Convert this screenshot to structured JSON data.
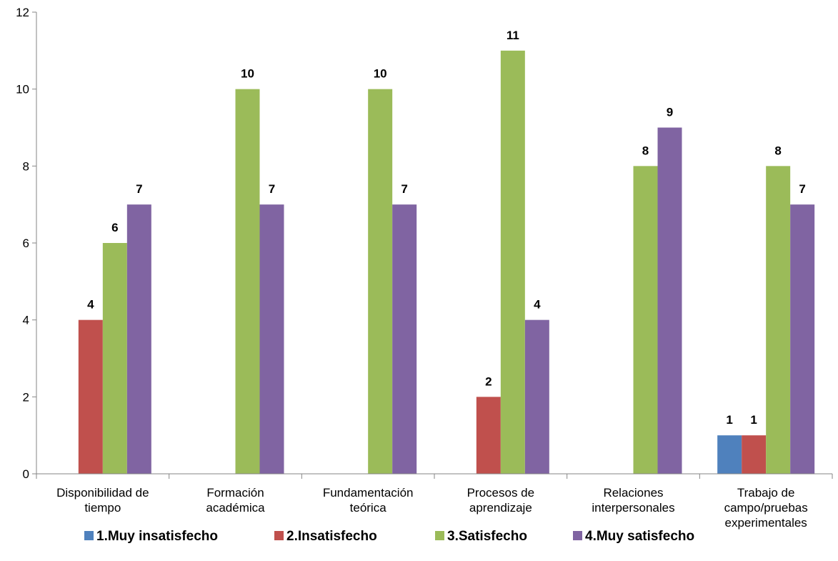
{
  "chart_data": {
    "type": "bar",
    "categories": [
      [
        "Disponibilidad de",
        "tiempo"
      ],
      [
        "Formación",
        "académica"
      ],
      [
        "Fundamentación",
        "teórica"
      ],
      [
        "Procesos de",
        "aprendizaje"
      ],
      [
        "Relaciones",
        "interpersonales"
      ],
      [
        "Trabajo de",
        "campo/pruebas",
        "experimentales"
      ]
    ],
    "series": [
      {
        "name": "1.Muy insatisfecho",
        "color": "#4F81BD",
        "values": [
          0,
          0,
          0,
          0,
          0,
          1
        ]
      },
      {
        "name": "2.Insatisfecho",
        "color": "#C0504D",
        "values": [
          4,
          0,
          0,
          2,
          0,
          1
        ]
      },
      {
        "name": "3.Satisfecho",
        "color": "#9BBB59",
        "values": [
          6,
          10,
          10,
          11,
          8,
          8
        ]
      },
      {
        "name": "4.Muy satisfecho",
        "color": "#8064A2",
        "values": [
          7,
          7,
          7,
          4,
          9,
          7
        ]
      }
    ],
    "ylim": [
      0,
      12
    ],
    "yticks": [
      0,
      2,
      4,
      6,
      8,
      10,
      12
    ],
    "xlabel": "",
    "ylabel": "",
    "grid": false,
    "data_labels": true,
    "legend_position": "bottom"
  }
}
